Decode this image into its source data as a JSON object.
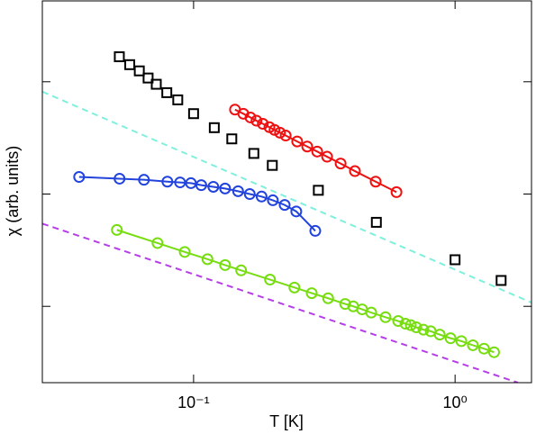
{
  "chart_data": {
    "type": "scatter",
    "xlabel": "T [K]",
    "ylabel": "χ (arb. units)",
    "xscale": "log",
    "yscale": "log",
    "xlim": [
      0.0264,
      1.96
    ],
    "ylim": [
      0.209,
      525
    ],
    "xticks": [
      {
        "value": 0.1,
        "label": "10⁻¹"
      },
      {
        "value": 1,
        "label": "10⁰"
      }
    ],
    "yticks": [
      1,
      10,
      100
    ],
    "series": [
      {
        "color": "#000000",
        "marker": "square",
        "line": "none",
        "x": [
          0.052,
          0.057,
          0.062,
          0.067,
          0.072,
          0.079,
          0.087,
          0.1,
          0.12,
          0.14,
          0.17,
          0.2,
          0.3,
          0.5,
          1,
          1.5
        ],
        "values": [
          167,
          142,
          125,
          108,
          95,
          80,
          69,
          52,
          39,
          31,
          23,
          18,
          10.8,
          5.6,
          2.6,
          1.7
        ]
      },
      {
        "color": "#ee1111",
        "marker": "circle",
        "line": "solid",
        "x": [
          0.144,
          0.155,
          0.165,
          0.174,
          0.184,
          0.195,
          0.204,
          0.214,
          0.225,
          0.249,
          0.272,
          0.297,
          0.324,
          0.365,
          0.414,
          0.497,
          0.597
        ],
        "values": [
          56.5,
          51.9,
          48.1,
          45.0,
          42.2,
          39.4,
          37.3,
          35.2,
          33.2,
          29.4,
          26.5,
          23.9,
          21.5,
          18.7,
          16.0,
          12.9,
          10.4
        ]
      },
      {
        "color": "#2244dd",
        "marker": "circle",
        "line": "solid",
        "x": [
          0.0365,
          0.0521,
          0.0646,
          0.0794,
          0.0888,
          0.0977,
          0.107,
          0.119,
          0.132,
          0.148,
          0.164,
          0.182,
          0.201,
          0.223,
          0.247,
          0.292
        ],
        "values": [
          14.2,
          13.7,
          13.4,
          12.9,
          12.7,
          12.5,
          12.0,
          11.6,
          11.2,
          10.6,
          10,
          9.5,
          8.8,
          8.0,
          7.0,
          4.7
        ]
      },
      {
        "color": "#77dd11",
        "marker": "circle",
        "line": "solid",
        "x": [
          0.0509,
          0.0728,
          0.0925,
          0.113,
          0.132,
          0.152,
          0.196,
          0.243,
          0.283,
          0.327,
          0.38,
          0.408,
          0.441,
          0.478,
          0.542,
          0.606,
          0.646,
          0.677,
          0.711,
          0.757,
          0.807,
          0.874,
          0.961,
          1.057,
          1.17,
          1.29,
          1.41
        ],
        "values": [
          4.79,
          3.66,
          3.05,
          2.63,
          2.33,
          2.09,
          1.73,
          1.47,
          1.31,
          1.18,
          1.05,
          1.0,
          0.94,
          0.88,
          0.8,
          0.74,
          0.7,
          0.68,
          0.65,
          0.62,
          0.6,
          0.56,
          0.52,
          0.49,
          0.45,
          0.42,
          0.39
        ]
      },
      {
        "color": "#7ff0dc",
        "marker": "none",
        "line": "dashed",
        "x": [
          0.0264,
          1.96
        ],
        "values": [
          81.6,
          1.08
        ]
      },
      {
        "color": "#b63ee8",
        "marker": "none",
        "line": "dashed",
        "x": [
          0.0264,
          1.74
        ],
        "values": [
          5.45,
          0.209
        ]
      }
    ]
  }
}
